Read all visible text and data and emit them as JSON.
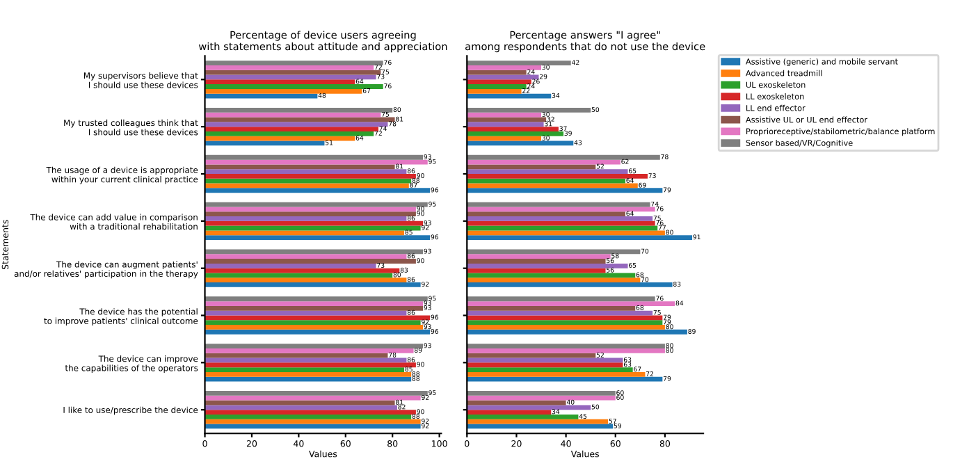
{
  "chart_data": [
    {
      "type": "bar",
      "orientation": "horizontal",
      "title": "Percentage of device users agreeing\nwith statements about attitude and appreciation",
      "xlabel": "Values",
      "ylabel": "Statements",
      "categories": [
        "My supervisors believe that\nI should use these devices",
        "My trusted colleagues think that\nI should use these devices",
        "The usage of a device is appropriate\nwithin your current clinical practice",
        "The device can add value in comparison\nwith a traditional rehabilitation",
        "The device can augment patients'\nand/or relatives' participation in the therapy",
        "The device has the potential\nto improve patients' clinical outcome",
        "The device can improve\nthe capabilities of the operators",
        "I like to use/prescribe the device"
      ],
      "series": [
        {
          "name": "Assistive (generic) and mobile servant",
          "color": "#1f77b4",
          "values": [
            48,
            51,
            96,
            96,
            92,
            96,
            88,
            92
          ]
        },
        {
          "name": "Advanced treadmill",
          "color": "#ff7f0e",
          "values": [
            67,
            64,
            87,
            85,
            86,
            93,
            88,
            92
          ]
        },
        {
          "name": "UL exoskeleton",
          "color": "#2ca02c",
          "values": [
            76,
            72,
            88,
            92,
            80,
            92,
            85,
            88
          ]
        },
        {
          "name": "LL exoskeleton",
          "color": "#d62728",
          "values": [
            64,
            74,
            90,
            93,
            83,
            96,
            90,
            90
          ]
        },
        {
          "name": "LL end effector",
          "color": "#9467bd",
          "values": [
            73,
            78,
            86,
            86,
            73,
            86,
            86,
            82
          ]
        },
        {
          "name": "Assistive UL or UL end effector",
          "color": "#8c564b",
          "values": [
            75,
            81,
            81,
            90,
            90,
            93,
            78,
            81
          ]
        },
        {
          "name": "Proprioreceptive/stabilometric/balance platform",
          "color": "#e377c2",
          "values": [
            72,
            75,
            95,
            90,
            86,
            93,
            89,
            92
          ]
        },
        {
          "name": "Sensor based/VR/Cognitive",
          "color": "#7f7f7f",
          "values": [
            76,
            80,
            93,
            95,
            93,
            95,
            93,
            95
          ]
        }
      ],
      "xlim": [
        0,
        100.8
      ],
      "xticks": [
        0,
        20,
        40,
        60,
        80,
        100
      ],
      "data_labels": true,
      "legend": "right"
    },
    {
      "type": "bar",
      "orientation": "horizontal",
      "title": "Percentage answers \"I agree\"\namong respondents that do not use the device",
      "xlabel": "Values",
      "categories": [
        null,
        null,
        null,
        null,
        null,
        null,
        null,
        null
      ],
      "series": [
        {
          "color": "#1f77b4",
          "values": [
            34,
            43,
            79,
            91,
            83,
            89,
            79,
            59
          ]
        },
        {
          "color": "#ff7f0e",
          "values": [
            22,
            30,
            69,
            80,
            70,
            80,
            72,
            57
          ]
        },
        {
          "color": "#2ca02c",
          "values": [
            24,
            39,
            64,
            77,
            68,
            79,
            67,
            45
          ]
        },
        {
          "color": "#d62728",
          "values": [
            26,
            37,
            73,
            76,
            56,
            79,
            63,
            34
          ]
        },
        {
          "color": "#9467bd",
          "values": [
            29,
            31,
            65,
            75,
            65,
            75,
            63,
            50
          ]
        },
        {
          "color": "#8c564b",
          "values": [
            24,
            32,
            52,
            64,
            56,
            68,
            52,
            40
          ]
        },
        {
          "color": "#e377c2",
          "values": [
            30,
            30,
            62,
            76,
            58,
            84,
            80,
            60
          ]
        },
        {
          "color": "#7f7f7f",
          "values": [
            42,
            50,
            78,
            74,
            70,
            76,
            80,
            60
          ]
        }
      ],
      "xlim": [
        0,
        95.5
      ],
      "xticks": [
        0,
        20,
        40,
        60,
        80
      ],
      "data_labels": true
    }
  ]
}
